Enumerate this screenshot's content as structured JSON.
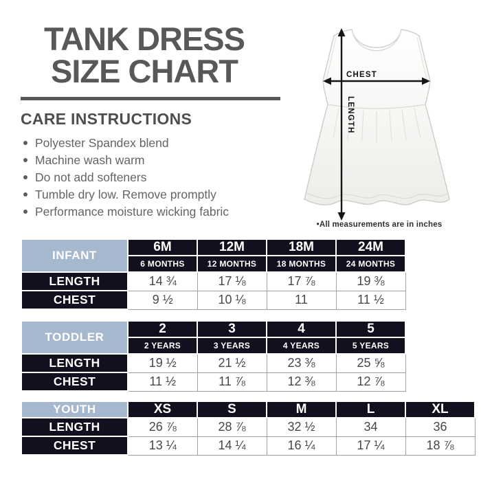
{
  "header": {
    "title_line1": "TANK DRESS",
    "title_line2": "SIZE CHART"
  },
  "care": {
    "heading": "CARE INSTRUCTIONS",
    "items": [
      "Polyester Spandex blend",
      "Machine wash warm",
      "Do not add softeners",
      "Tumble dry low. Remove promptly",
      "Performance moisture wicking fabric"
    ]
  },
  "diagram": {
    "chest_label": "CHEST",
    "length_label": "LENGTH",
    "note": "•All measurements are in inches",
    "unit": "inches"
  },
  "colors": {
    "title_gray": "#58585a",
    "body_text_gray": "#646467",
    "header_navy": "#10101e",
    "group_label_blue": "#a6b8cd",
    "cell_border_gray": "#9fa0a3",
    "arrow_black": "#151515"
  },
  "size_tables": [
    {
      "group": "INFANT",
      "columns": [
        {
          "code": "6M",
          "label": "6 MONTHS"
        },
        {
          "code": "12M",
          "label": "12 MONTHS"
        },
        {
          "code": "18M",
          "label": "18 MONTHS"
        },
        {
          "code": "24M",
          "label": "24 MONTHS"
        }
      ],
      "rows": [
        {
          "label": "LENGTH",
          "values": [
            "14 ¾",
            "17 ⅛",
            "17 ⅞",
            "19 ⅜"
          ]
        },
        {
          "label": "CHEST",
          "values": [
            "9 ½",
            "10 ⅛",
            "11",
            "11 ½"
          ]
        }
      ]
    },
    {
      "group": "TODDLER",
      "columns": [
        {
          "code": "2",
          "label": "2 YEARS"
        },
        {
          "code": "3",
          "label": "3 YEARS"
        },
        {
          "code": "4",
          "label": "4 YEARS"
        },
        {
          "code": "5",
          "label": "5 YEARS"
        }
      ],
      "rows": [
        {
          "label": "LENGTH",
          "values": [
            "19 ½",
            "21 ½",
            "23 ⅜",
            "25 ⅝"
          ]
        },
        {
          "label": "CHEST",
          "values": [
            "11 ½",
            "11 ⅞",
            "12 ⅜",
            "12 ⅞"
          ]
        }
      ]
    },
    {
      "group": "YOUTH",
      "columns": [
        {
          "code": "XS"
        },
        {
          "code": "S"
        },
        {
          "code": "M"
        },
        {
          "code": "L"
        },
        {
          "code": "XL"
        }
      ],
      "rows": [
        {
          "label": "LENGTH",
          "values": [
            "26 ⅞",
            "28 ⅞",
            "32 ½",
            "34",
            "36"
          ]
        },
        {
          "label": "CHEST",
          "values": [
            "13 ¼",
            "14 ¼",
            "16 ¼",
            "17 ¼",
            "18 ⅞"
          ]
        }
      ]
    }
  ]
}
